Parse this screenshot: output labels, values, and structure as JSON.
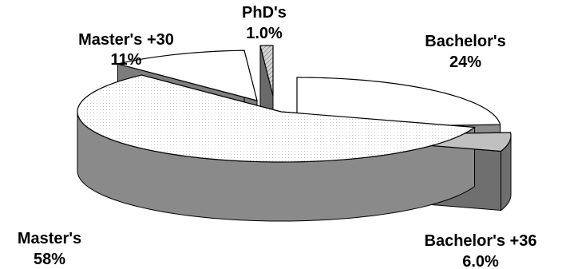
{
  "chart_data": {
    "type": "pie",
    "style": "3d-exploded",
    "title": "",
    "slices": [
      {
        "name": "Bachelor's",
        "value": 24,
        "value_label": "24%",
        "color": "#ffffff",
        "side_color": "#8c8c8c"
      },
      {
        "name": "Bachelor's +36",
        "value": 6.0,
        "value_label": "6.0%",
        "color": "#c0c0c0",
        "side_color": "#6f6f6f"
      },
      {
        "name": "Master's",
        "value": 58,
        "value_label": "58%",
        "color": "#ffffff",
        "side_color": "#8a8a8a"
      },
      {
        "name": "Master's +30",
        "value": 11,
        "value_label": "11%",
        "color": "#ffffff",
        "side_color": "#7d7d7d"
      },
      {
        "name": "PhD's",
        "value": 1.0,
        "value_label": "1.0%",
        "color": "#cfcfcf",
        "side_color": "#6a6a6a"
      }
    ]
  }
}
